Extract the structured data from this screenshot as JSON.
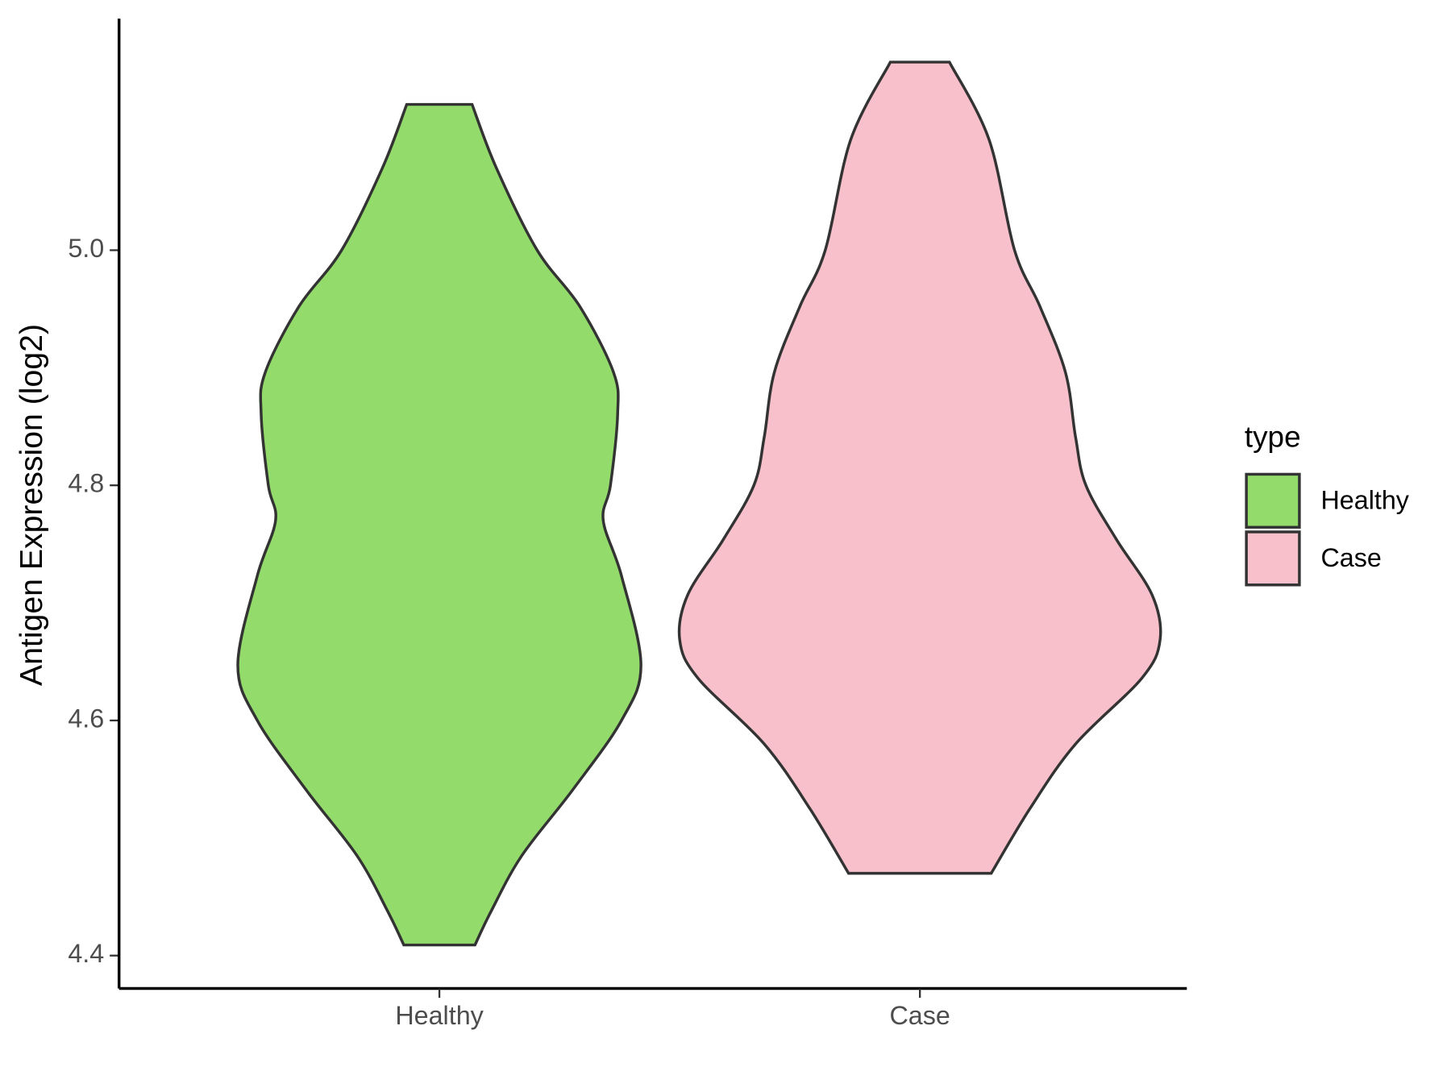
{
  "chart_data": {
    "type": "violin",
    "y_label": "Antigen Expression (log2)",
    "categories": [
      "Healthy",
      "Case"
    ],
    "legend_title": "type",
    "ylim": [
      4.372,
      5.197
    ],
    "yticks": [
      4.4,
      4.6,
      4.8,
      {
        "value": 5,
        "label": "5.0"
      }
    ],
    "series": [
      {
        "name": "Healthy",
        "color": "#93dc6b",
        "y": [
          5.124,
          5.07,
          5.0,
          4.952,
          4.896,
          4.861,
          4.8,
          4.77,
          4.723,
          4.647,
          4.6,
          4.541,
          4.485,
          4.438,
          4.409
        ],
        "density": [
          0.136,
          0.237,
          0.407,
          0.585,
          0.725,
          0.742,
          0.712,
          0.682,
          0.758,
          0.839,
          0.758,
          0.555,
          0.343,
          0.216,
          0.148
        ]
      },
      {
        "name": "Case",
        "color": "#f7c0cb",
        "y": [
          5.16,
          5.094,
          5.0,
          4.952,
          4.896,
          4.841,
          4.8,
          4.754,
          4.707,
          4.669,
          4.636,
          4.58,
          4.525,
          4.47
        ],
        "density": [
          0.123,
          0.288,
          0.394,
          0.5,
          0.606,
          0.648,
          0.691,
          0.818,
          0.966,
          1.0,
          0.924,
          0.648,
          0.458,
          0.297
        ]
      }
    ]
  }
}
